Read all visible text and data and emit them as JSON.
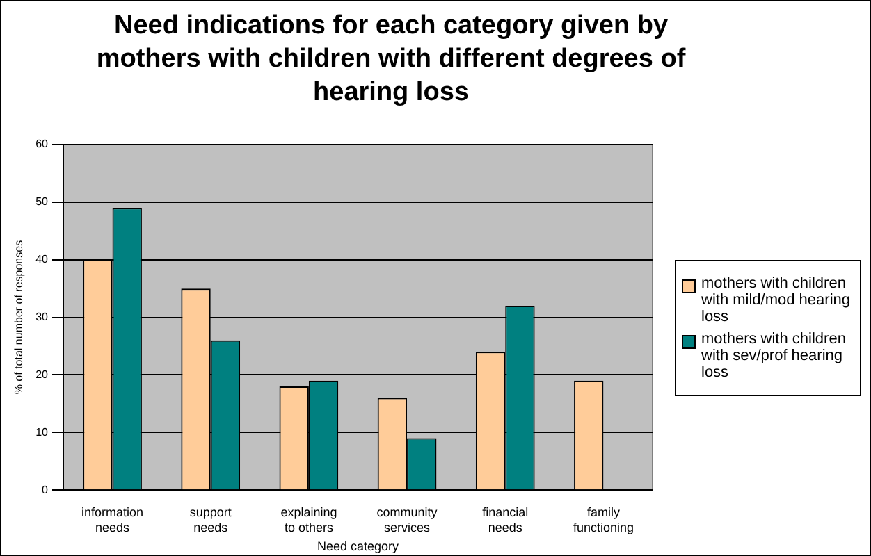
{
  "chart_data": {
    "type": "bar",
    "title": "Need indications for each category given by mothers with children with different degrees of hearing loss",
    "xlabel": "Need category",
    "ylabel": "% of total number of responses",
    "categories": [
      "information needs",
      "support needs",
      "explaining to others",
      "community services",
      "financial needs",
      "family functioning"
    ],
    "series": [
      {
        "name": "mothers with children with mild/mod hearing loss",
        "color": "#ffcc99",
        "values": [
          40,
          35,
          18,
          16,
          24,
          19
        ]
      },
      {
        "name": "mothers with children with sev/prof hearing loss",
        "color": "#008080",
        "values": [
          49,
          26,
          19,
          9,
          32,
          null
        ]
      }
    ],
    "ylim": [
      0,
      60
    ],
    "yticks": [
      0,
      10,
      20,
      30,
      40,
      50,
      60
    ],
    "grid": "y",
    "legend": "right"
  }
}
